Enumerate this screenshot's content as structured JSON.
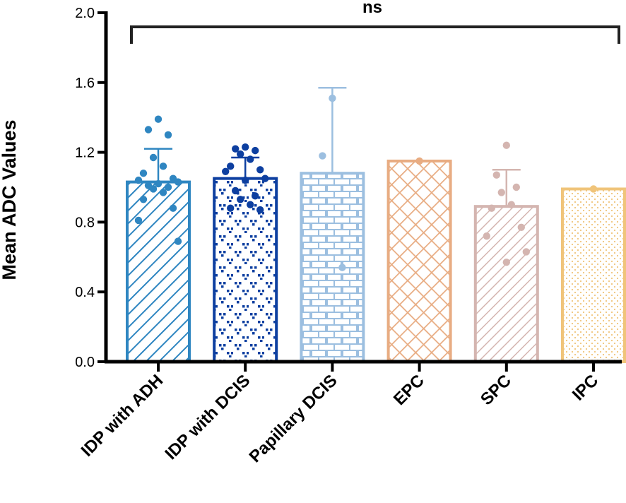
{
  "chart_data": {
    "type": "bar",
    "title": "",
    "xlabel": "",
    "ylabel": "Mean ADC Values",
    "ylim": [
      0,
      2.0
    ],
    "yticks": [
      "0.0",
      "0.4",
      "0.8",
      "1.2",
      "1.6",
      "2.0"
    ],
    "ytick_values": [
      0,
      0.4,
      0.8,
      1.2,
      1.6,
      2.0
    ],
    "categories": [
      "IDP with ADH",
      "IDP with DCIS",
      "Papillary DCIS",
      "EPC",
      "SPC",
      "IPC"
    ],
    "values": [
      1.03,
      1.05,
      1.08,
      1.15,
      0.89,
      0.99
    ],
    "sd": [
      0.19,
      0.12,
      0.49,
      0,
      0.21,
      0
    ],
    "points": [
      [
        1.39,
        1.33,
        1.3,
        1.17,
        1.12,
        1.08,
        1.05,
        1.04,
        1.03,
        1.02,
        1.01,
        1.0,
        0.99,
        0.97,
        0.93,
        0.88,
        0.81,
        0.69
      ],
      [
        1.23,
        1.22,
        1.21,
        1.19,
        1.16,
        1.12,
        1.1,
        1.09,
        1.05,
        1.04,
        0.98,
        0.95,
        0.93,
        0.9,
        0.88,
        0.87
      ],
      [
        1.51,
        1.18,
        0.54
      ],
      [
        1.15
      ],
      [
        1.24,
        1.07,
        1.0,
        0.97,
        0.9,
        0.88,
        0.77,
        0.72,
        0.63,
        0.57
      ],
      [
        0.99
      ]
    ],
    "colors": [
      "#2f86c1",
      "#0d3fa0",
      "#9cbfe0",
      "#e8ac82",
      "#d4b5b0",
      "#f0c47a"
    ],
    "patterns": [
      "diagonal",
      "triangles",
      "bricks",
      "crosshatch",
      "diagonal-dense",
      "dots"
    ],
    "significance": {
      "label": "ns",
      "from": 0,
      "to": 5
    }
  }
}
